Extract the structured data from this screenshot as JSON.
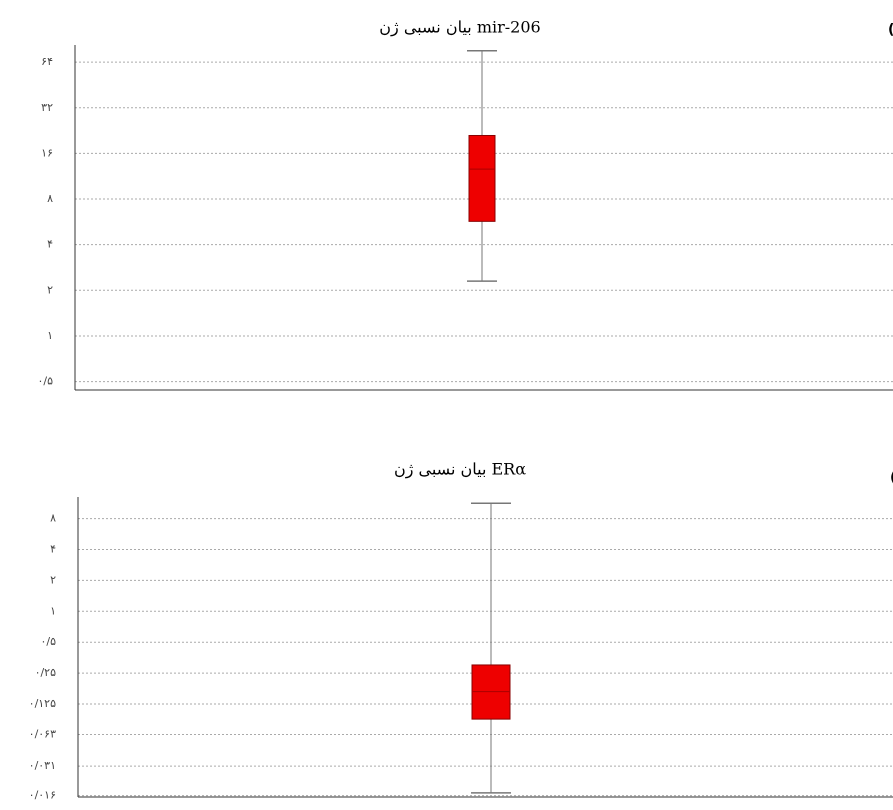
{
  "chart_data": [
    {
      "type": "box",
      "title": "بیان نسبی ژن mir-206",
      "panel_label": "(الف)",
      "log_scale": true,
      "grid": true,
      "ylim": [
        0.44,
        83
      ],
      "yticks": [
        {
          "value": 0.5,
          "label": "۰/۵"
        },
        {
          "value": 1,
          "label": "۱"
        },
        {
          "value": 2,
          "label": "۲"
        },
        {
          "value": 4,
          "label": "۴"
        },
        {
          "value": 8,
          "label": "۸"
        },
        {
          "value": 16,
          "label": "۱۶"
        },
        {
          "value": 32,
          "label": "۳۲"
        },
        {
          "value": 64,
          "label": "۶۴"
        }
      ],
      "boxes": [
        {
          "whislo": 2.3,
          "q1": 5.7,
          "med": 12.6,
          "q3": 21,
          "whishi": 76,
          "color": "#ee0000"
        }
      ]
    },
    {
      "type": "box",
      "title": "بیان نسبی ژن ERα",
      "panel_label": "(ب)",
      "log_scale": true,
      "grid": true,
      "ylim": [
        0.0155,
        13
      ],
      "yticks": [
        {
          "value": 0.016,
          "label": "۰/۰۱۶"
        },
        {
          "value": 0.031,
          "label": "۰/۰۳۱"
        },
        {
          "value": 0.063,
          "label": "۰/۰۶۳"
        },
        {
          "value": 0.125,
          "label": "۰/۱۲۵"
        },
        {
          "value": 0.25,
          "label": "۰/۲۵"
        },
        {
          "value": 0.5,
          "label": "۰/۵"
        },
        {
          "value": 1,
          "label": "۱"
        },
        {
          "value": 2,
          "label": "۲"
        },
        {
          "value": 4,
          "label": "۴"
        },
        {
          "value": 8,
          "label": "۸"
        }
      ],
      "boxes": [
        {
          "whislo": 0.017,
          "q1": 0.089,
          "med": 0.165,
          "q3": 0.3,
          "whishi": 11.3,
          "color": "#ee0000"
        }
      ]
    }
  ]
}
